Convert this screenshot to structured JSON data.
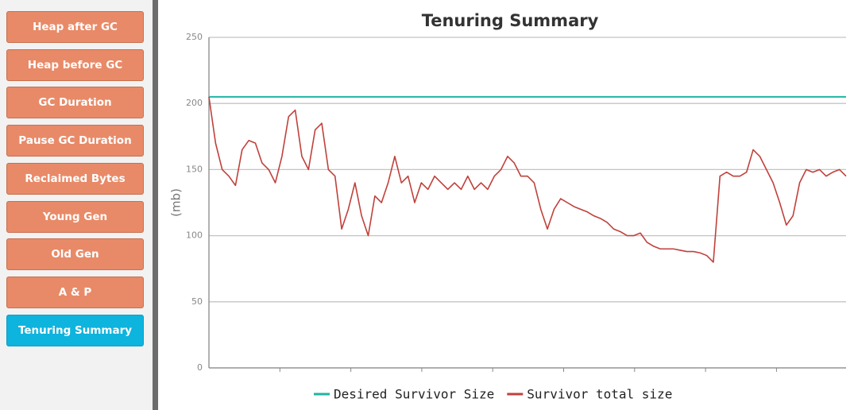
{
  "sidebar": {
    "buttons": [
      {
        "label": "Heap after GC",
        "active": false
      },
      {
        "label": "Heap before GC",
        "active": false
      },
      {
        "label": "GC Duration",
        "active": false
      },
      {
        "label": "Pause GC Duration",
        "active": false
      },
      {
        "label": "Reclaimed Bytes",
        "active": false
      },
      {
        "label": "Young Gen",
        "active": false
      },
      {
        "label": "Old Gen",
        "active": false
      },
      {
        "label": "A & P",
        "active": false
      },
      {
        "label": "Tenuring Summary",
        "active": true
      }
    ]
  },
  "chart_data": {
    "type": "line",
    "title": "Tenuring Summary",
    "y_label": "(mb)",
    "ylim": [
      0,
      250
    ],
    "yticks": [
      0,
      50,
      100,
      150,
      200,
      250
    ],
    "grid": true,
    "legend": "bottom",
    "series": [
      {
        "name": "Desired Survivor Size",
        "color": "#1fb5a3",
        "values": [
          205,
          205,
          205,
          205,
          205,
          205,
          205,
          205,
          205,
          205,
          205,
          205,
          205,
          205,
          205,
          205,
          205,
          205,
          205,
          205,
          205,
          205,
          205,
          205,
          205,
          205,
          205,
          205,
          205,
          205,
          205,
          205,
          205,
          205,
          205,
          205,
          205,
          205,
          205,
          205,
          205,
          205,
          205,
          205,
          205,
          205,
          205,
          205,
          205,
          205,
          205,
          205,
          205,
          205,
          205,
          205,
          205,
          205,
          205,
          205,
          205,
          205,
          205,
          205,
          205,
          205,
          205,
          205,
          205,
          205,
          205,
          205,
          205,
          205,
          205,
          205,
          205,
          205,
          205,
          205,
          205,
          205,
          205,
          205,
          205,
          205,
          205,
          205,
          205,
          205,
          205,
          205,
          205,
          205,
          205,
          205,
          205
        ]
      },
      {
        "name": "Survivor total size",
        "color": "#c0413b",
        "values": [
          205,
          170,
          150,
          145,
          138,
          165,
          172,
          170,
          155,
          150,
          140,
          160,
          190,
          195,
          160,
          150,
          180,
          185,
          150,
          145,
          105,
          120,
          140,
          115,
          100,
          130,
          125,
          140,
          160,
          140,
          145,
          125,
          140,
          135,
          145,
          140,
          135,
          140,
          135,
          145,
          135,
          140,
          135,
          145,
          150,
          160,
          155,
          145,
          145,
          140,
          120,
          105,
          120,
          128,
          125,
          122,
          120,
          118,
          115,
          113,
          110,
          105,
          103,
          100,
          100,
          102,
          95,
          92,
          90,
          90,
          90,
          89,
          88,
          88,
          87,
          85,
          80,
          145,
          148,
          145,
          145,
          148,
          165,
          160,
          150,
          140,
          125,
          108,
          115,
          140,
          150,
          148,
          150,
          145,
          148,
          150,
          145
        ]
      }
    ]
  }
}
